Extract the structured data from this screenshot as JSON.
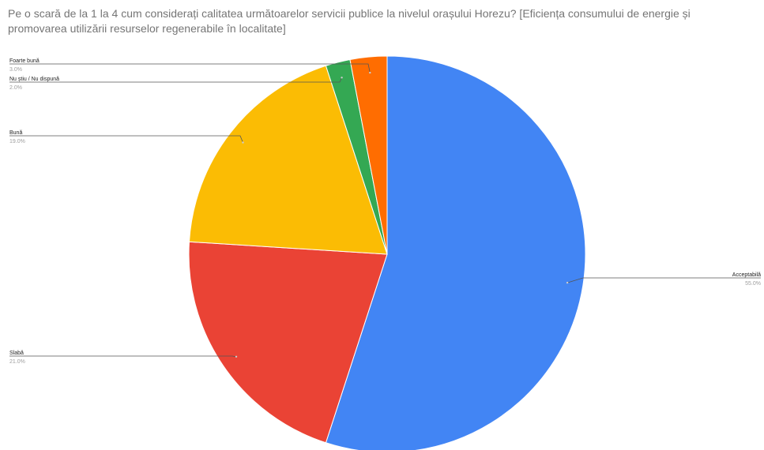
{
  "chart_data": {
    "type": "pie",
    "title": "Pe o scară de la 1 la 4 cum considerați calitatea următoarelor servicii publice la nivelul orașului Horezu? [Eficiența consumului de energie și promovarea utilizării resurselor regenerabile în localitate]",
    "slices": [
      {
        "label": "Acceptabilă",
        "value": 55.0,
        "pct_label": "55.0%",
        "color": "#4285f4"
      },
      {
        "label": "Slabă",
        "value": 21.0,
        "pct_label": "21.0%",
        "color": "#ea4335"
      },
      {
        "label": "Bună",
        "value": 19.0,
        "pct_label": "19.0%",
        "color": "#fbbc04"
      },
      {
        "label": "Nu știu / Nu dispună",
        "value": 2.0,
        "pct_label": "2.0%",
        "color": "#34a853"
      },
      {
        "label": "Foarte bună",
        "value": 3.0,
        "pct_label": "3.0%",
        "color": "#ff6d01"
      }
    ],
    "legend": "none"
  }
}
